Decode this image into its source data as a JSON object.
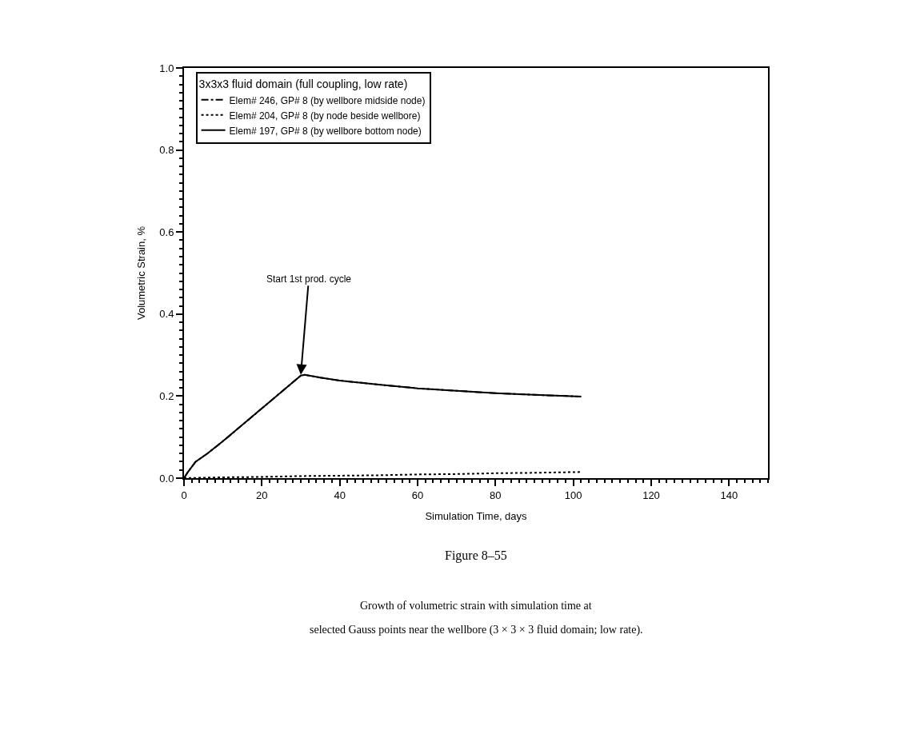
{
  "chart_data": {
    "type": "line",
    "xlabel": "Simulation Time, days",
    "ylabel": "Volumetric Strain, %",
    "legend_title": "3x3x3 fluid domain (full coupling, low rate)",
    "legend": "top left",
    "xlim": [
      0,
      150
    ],
    "xticks": [
      0,
      20,
      40,
      60,
      80,
      100,
      120,
      140
    ],
    "ylim": [
      0,
      1.0
    ],
    "yticks": [
      {
        "value": 0,
        "label": "0.0"
      },
      0.2,
      0.4,
      0.6,
      0.8,
      {
        "value": 1.0,
        "label": "1.0"
      }
    ],
    "series": [
      {
        "name": "Elem# 246, GP# 8 (by wellbore midside node)",
        "color": "#000000",
        "line_style": "dashdot",
        "x": [
          0,
          1,
          3,
          6,
          10,
          15,
          20,
          25,
          30,
          31,
          35,
          40,
          50,
          60,
          70,
          80,
          90,
          102
        ],
        "values": [
          0,
          0.015,
          0.04,
          0.06,
          0.09,
          0.13,
          0.17,
          0.21,
          0.25,
          0.252,
          0.245,
          0.238,
          0.228,
          0.219,
          0.213,
          0.207,
          0.203,
          0.199
        ]
      },
      {
        "name": "Elem# 204, GP# 8 (by node beside wellbore)",
        "color": "#000000",
        "line_style": "dotted",
        "x": [
          0,
          10,
          20,
          30,
          40,
          50,
          60,
          70,
          80,
          90,
          102
        ],
        "values": [
          0,
          0.002,
          0.003,
          0.005,
          0.006,
          0.007,
          0.009,
          0.01,
          0.012,
          0.013,
          0.015
        ]
      },
      {
        "name": "Elem# 197, GP# 8 (by wellbore bottom node)",
        "color": "#000000",
        "line_style": "solid",
        "x": [
          0,
          1,
          3,
          6,
          10,
          15,
          20,
          25,
          30,
          31,
          35,
          40,
          50,
          60,
          70,
          80,
          90,
          102
        ],
        "values": [
          0,
          0.015,
          0.04,
          0.06,
          0.09,
          0.13,
          0.17,
          0.21,
          0.25,
          0.252,
          0.245,
          0.238,
          0.228,
          0.219,
          0.213,
          0.207,
          0.203,
          0.199
        ]
      }
    ],
    "annotations": [
      {
        "text": "Start 1st prod. cycle",
        "x": 30,
        "y": 0.252
      },
      "Figure 8–55",
      "Growth of volumetric strain with simulation time at",
      "selected Gauss points near the wellbore (3 × 3 × 3 fluid domain; low rate)."
    ]
  }
}
